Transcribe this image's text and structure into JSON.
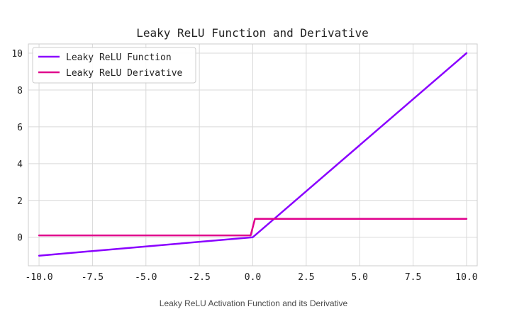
{
  "chart_data": {
    "type": "line",
    "title": "Leaky ReLU Function and Derivative",
    "xlabel": "",
    "ylabel": "",
    "xlim": [
      -10.5,
      10.5
    ],
    "ylim": [
      -1.55,
      10.5
    ],
    "xticks": [
      -10.0,
      -7.5,
      -5.0,
      -2.5,
      0.0,
      2.5,
      5.0,
      7.5,
      10.0
    ],
    "xtick_labels": [
      "-10.0",
      "-7.5",
      "-5.0",
      "-2.5",
      "0.0",
      "2.5",
      "5.0",
      "7.5",
      "10.0"
    ],
    "yticks": [
      0,
      2,
      4,
      6,
      8,
      10
    ],
    "ytick_labels": [
      "0",
      "2",
      "4",
      "6",
      "8",
      "10"
    ],
    "grid": true,
    "legend_position": "top-left",
    "series": [
      {
        "name": "Leaky ReLU Function",
        "color": "#8a00ff",
        "x": [
          -10,
          0,
          10
        ],
        "y": [
          -1,
          0,
          10
        ]
      },
      {
        "name": "Leaky ReLU Derivative",
        "color": "#e0008c",
        "x": [
          -10,
          -0.1,
          0.1,
          10
        ],
        "y": [
          0.1,
          0.1,
          1,
          1
        ]
      }
    ]
  },
  "caption": "Leaky ReLU Activation Function and its Derivative"
}
